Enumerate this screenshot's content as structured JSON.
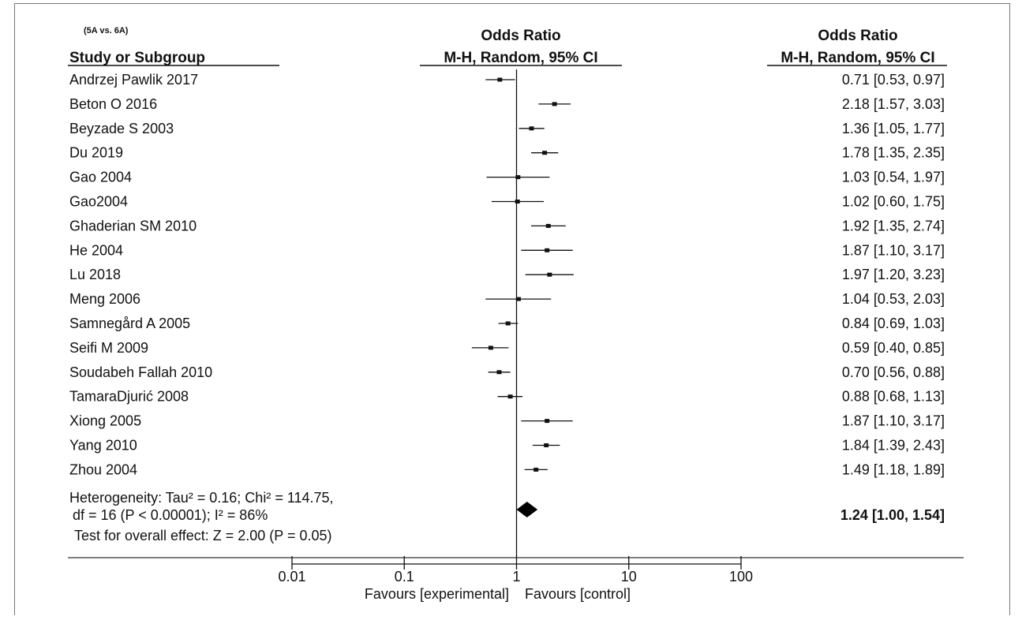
{
  "chart_data": {
    "type": "forest",
    "comparison": "(5A vs. 6A)",
    "col_study_header": "Study or Subgroup",
    "col_plot_header_top": "Odds Ratio",
    "col_plot_header_bottom": "M-H, Random, 95% CI",
    "col_value_header_top": "Odds Ratio",
    "col_value_header_bottom": "M-H, Random, 95% CI",
    "studies": [
      {
        "name": "Andrzej Pawlik 2017",
        "or": 0.71,
        "lower": 0.53,
        "upper": 0.97,
        "label": "0.71 [0.53, 0.97]"
      },
      {
        "name": "Beton O 2016",
        "or": 2.18,
        "lower": 1.57,
        "upper": 3.03,
        "label": "2.18 [1.57, 3.03]"
      },
      {
        "name": "Beyzade S 2003",
        "or": 1.36,
        "lower": 1.05,
        "upper": 1.77,
        "label": "1.36 [1.05, 1.77]"
      },
      {
        "name": "Du 2019",
        "or": 1.78,
        "lower": 1.35,
        "upper": 2.35,
        "label": "1.78 [1.35, 2.35]"
      },
      {
        "name": "Gao 2004",
        "or": 1.03,
        "lower": 0.54,
        "upper": 1.97,
        "label": "1.03 [0.54, 1.97]"
      },
      {
        "name": "Gao2004",
        "or": 1.02,
        "lower": 0.6,
        "upper": 1.75,
        "label": "1.02 [0.60, 1.75]"
      },
      {
        "name": "Ghaderian SM 2010",
        "or": 1.92,
        "lower": 1.35,
        "upper": 2.74,
        "label": "1.92 [1.35, 2.74]"
      },
      {
        "name": "He 2004",
        "or": 1.87,
        "lower": 1.1,
        "upper": 3.17,
        "label": "1.87 [1.10, 3.17]"
      },
      {
        "name": "Lu 2018",
        "or": 1.97,
        "lower": 1.2,
        "upper": 3.23,
        "label": "1.97 [1.20, 3.23]"
      },
      {
        "name": "Meng 2006",
        "or": 1.04,
        "lower": 0.53,
        "upper": 2.03,
        "label": "1.04 [0.53, 2.03]"
      },
      {
        "name": "Samnegård A 2005",
        "or": 0.84,
        "lower": 0.69,
        "upper": 1.03,
        "label": "0.84 [0.69, 1.03]"
      },
      {
        "name": "Seifi M 2009",
        "or": 0.59,
        "lower": 0.4,
        "upper": 0.85,
        "label": "0.59 [0.40, 0.85]"
      },
      {
        "name": "Soudabeh Fallah 2010",
        "or": 0.7,
        "lower": 0.56,
        "upper": 0.88,
        "label": "0.70 [0.56, 0.88]"
      },
      {
        "name": "TamaraDjurić 2008",
        "or": 0.88,
        "lower": 0.68,
        "upper": 1.13,
        "label": "0.88 [0.68, 1.13]"
      },
      {
        "name": "Xiong 2005",
        "or": 1.87,
        "lower": 1.1,
        "upper": 3.17,
        "label": "1.87 [1.10, 3.17]"
      },
      {
        "name": "Yang 2010",
        "or": 1.84,
        "lower": 1.39,
        "upper": 2.43,
        "label": "1.84 [1.39, 2.43]"
      },
      {
        "name": "Zhou 2004",
        "or": 1.49,
        "lower": 1.18,
        "upper": 1.89,
        "label": "1.49 [1.18, 1.89]"
      }
    ],
    "overall": {
      "or": 1.24,
      "lower": 1.0,
      "upper": 1.54,
      "label": "1.24 [1.00, 1.54]"
    },
    "heterogeneity_line1": "Heterogeneity: Tau² = 0.16; Chi² = 114.75,",
    "heterogeneity_line2": "df = 16 (P < 0.00001); I² = 86%",
    "overall_effect": "Test for overall effect: Z = 2.00 (P = 0.05)",
    "x_scale": "log",
    "xlim": [
      0.01,
      100
    ],
    "x_ticks": [
      0.01,
      0.1,
      1,
      10,
      100
    ],
    "x_tick_labels": [
      "0.01",
      "0.1",
      "1",
      "10",
      "100"
    ],
    "favours_left": "Favours [experimental]",
    "favours_right": "Favours [control]"
  }
}
